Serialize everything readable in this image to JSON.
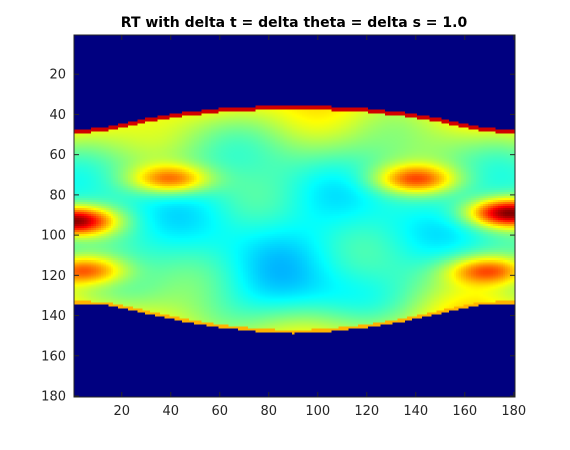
{
  "chart_data": {
    "type": "heatmap",
    "title": "RT with delta t = delta theta = delta s = 1.0",
    "xlabel": "",
    "ylabel": "",
    "xlim": [
      0.5,
      180.5
    ],
    "ylim": [
      0.5,
      180.5
    ],
    "y_axis_direction": "reversed",
    "grid": false,
    "colormap": "jet",
    "x_ticks": [
      20,
      40,
      60,
      80,
      100,
      120,
      140,
      160,
      180
    ],
    "y_ticks": [
      20,
      40,
      60,
      80,
      100,
      120,
      140,
      160,
      180
    ],
    "x_tick_labels": [
      "20",
      "40",
      "60",
      "80",
      "100",
      "120",
      "140",
      "160",
      "180"
    ],
    "y_tick_labels": [
      "20",
      "40",
      "60",
      "80",
      "100",
      "120",
      "140",
      "160",
      "180"
    ],
    "grid_size": [
      180,
      180
    ],
    "features": {
      "support_top": [
        [
          1,
          48
        ],
        [
          15,
          46
        ],
        [
          30,
          42
        ],
        [
          45,
          39
        ],
        [
          60,
          37
        ],
        [
          75,
          36
        ],
        [
          90,
          36
        ],
        [
          105,
          36
        ],
        [
          120,
          37
        ],
        [
          135,
          39
        ],
        [
          150,
          42
        ],
        [
          165,
          46
        ],
        [
          180,
          48
        ]
      ],
      "support_bottom": [
        [
          1,
          134
        ],
        [
          15,
          135
        ],
        [
          30,
          139
        ],
        [
          45,
          143
        ],
        [
          60,
          146
        ],
        [
          75,
          148
        ],
        [
          90,
          149
        ],
        [
          105,
          148
        ],
        [
          120,
          146
        ],
        [
          135,
          143
        ],
        [
          150,
          139
        ],
        [
          165,
          135
        ],
        [
          180,
          134
        ]
      ],
      "hot_regions": [
        {
          "theta": 0,
          "s": 93,
          "level": 0.95
        },
        {
          "theta": 178,
          "s": 89,
          "level": 0.95
        },
        {
          "theta": 5,
          "s": 118,
          "level": 0.8
        },
        {
          "theta": 170,
          "s": 118,
          "level": 0.8
        },
        {
          "theta": 40,
          "s": 72,
          "level": 0.75
        },
        {
          "theta": 140,
          "s": 72,
          "level": 0.75
        }
      ],
      "cool_regions": [
        {
          "theta": 90,
          "s": 100,
          "level": 0.38
        },
        {
          "theta": 90,
          "s": 125,
          "level": 0.35
        }
      ],
      "edge_level": 0.92,
      "background_level": 0.0
    },
    "colors": {
      "background": "#00008f",
      "axes_edge": "#262626"
    }
  }
}
